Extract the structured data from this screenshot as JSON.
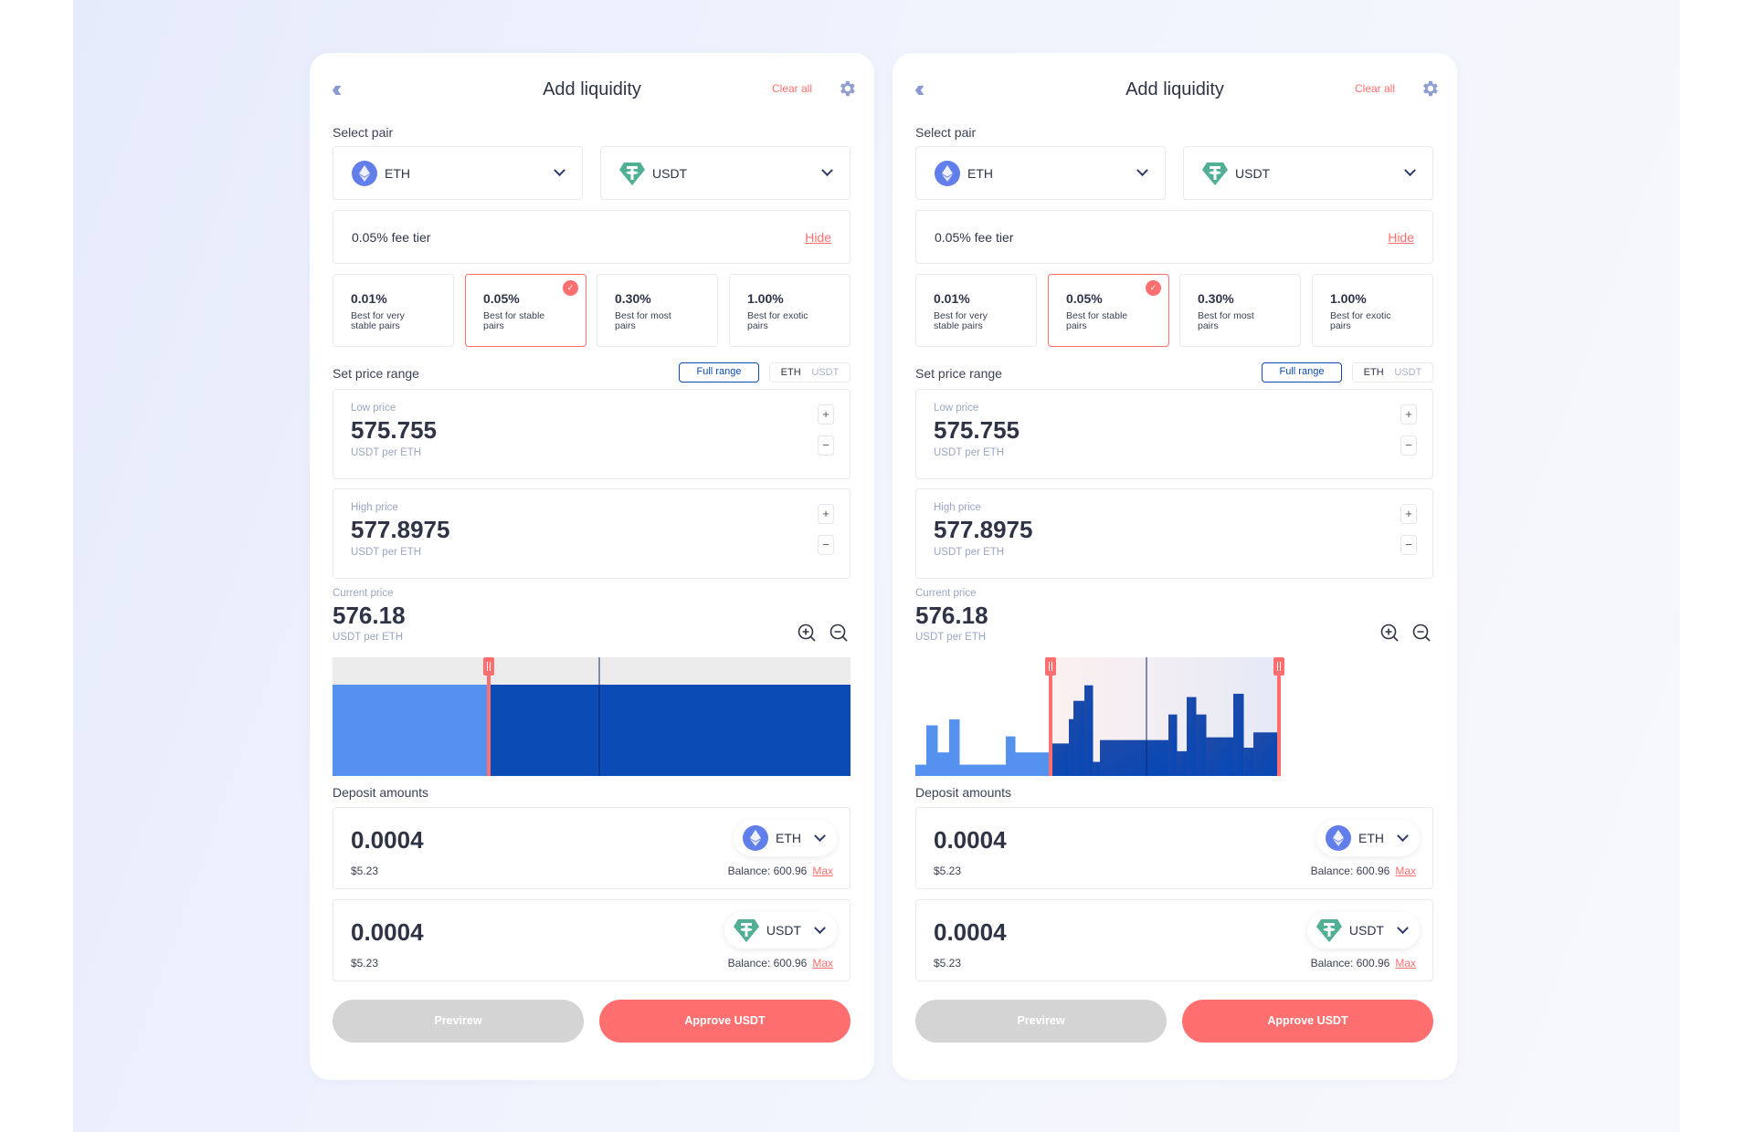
{
  "colors": {
    "accent": "#ff6f6f",
    "primary_blue": "#0a4bb5",
    "light_blue": "#5592ef",
    "eth": "#627eea",
    "usdt": "#50af95"
  },
  "panels": [
    {
      "header": {
        "title": "Add liquidity",
        "clear_all": "Clear all",
        "back_icon": "double-chevron-left-icon",
        "settings_icon": "gear-icon"
      },
      "select_pair": {
        "label": "Select pair",
        "token_a": "ETH",
        "token_b": "USDT"
      },
      "fee": {
        "current": "0.05% fee tier",
        "hide": "Hide",
        "selected_index": 1,
        "options": [
          {
            "pct": "0.01%",
            "desc": "Best for very stable pairs"
          },
          {
            "pct": "0.05%",
            "desc": "Best for stable pairs"
          },
          {
            "pct": "0.30%",
            "desc": "Best for most pairs"
          },
          {
            "pct": "1.00%",
            "desc": "Best for exotic pairs"
          }
        ]
      },
      "range": {
        "label": "Set price range",
        "full_range": "Full range",
        "toggle_a": "ETH",
        "toggle_b": "USDT",
        "full_range_active": true
      },
      "low": {
        "label": "Low price",
        "value": "575.755",
        "unit": "USDT per ETH"
      },
      "high": {
        "label": "High price",
        "value": "577.8975",
        "unit": "USDT per ETH"
      },
      "current": {
        "label": "Current price",
        "value": "576.18",
        "unit": "USDT per ETH"
      },
      "liquidity_chart": {
        "mode": "full-range"
      },
      "deposit": {
        "label": "Deposit amounts",
        "items": [
          {
            "amount": "0.0004",
            "usd": "$5.23",
            "token": "ETH",
            "balance": "Balance: 600.96",
            "max": "Max"
          },
          {
            "amount": "0.0004",
            "usd": "$5.23",
            "token": "USDT",
            "balance": "Balance: 600.96",
            "max": "Max"
          }
        ]
      },
      "buttons": {
        "preview": "Previrew",
        "approve": "Approve USDT"
      }
    },
    {
      "header": {
        "title": "Add liquidity",
        "clear_all": "Clear all",
        "back_icon": "double-chevron-left-icon",
        "settings_icon": "gear-icon"
      },
      "select_pair": {
        "label": "Select pair",
        "token_a": "ETH",
        "token_b": "USDT"
      },
      "fee": {
        "current": "0.05% fee tier",
        "hide": "Hide",
        "selected_index": 1,
        "options": [
          {
            "pct": "0.01%",
            "desc": "Best for very stable pairs"
          },
          {
            "pct": "0.05%",
            "desc": "Best for stable pairs"
          },
          {
            "pct": "0.30%",
            "desc": "Best for most pairs"
          },
          {
            "pct": "1.00%",
            "desc": "Best for exotic pairs"
          }
        ]
      },
      "range": {
        "label": "Set price range",
        "full_range": "Full range",
        "toggle_a": "ETH",
        "toggle_b": "USDT",
        "full_range_active": true
      },
      "low": {
        "label": "Low price",
        "value": "575.755",
        "unit": "USDT per ETH"
      },
      "high": {
        "label": "High price",
        "value": "577.8975",
        "unit": "USDT per ETH"
      },
      "current": {
        "label": "Current price",
        "value": "576.18",
        "unit": "USDT per ETH"
      },
      "liquidity_chart": {
        "mode": "histogram",
        "outside_liquidity_pct": [
          9.6,
          43,
          20,
          48,
          9.6,
          33.6,
          20
        ],
        "inside_liquidity_pct": [
          27.6,
          48.3,
          63.8,
          77,
          12,
          30.5,
          52.2,
          21,
          67,
          52.2,
          32.8,
          69.8,
          24,
          37
        ]
      },
      "deposit": {
        "label": "Deposit amounts",
        "items": [
          {
            "amount": "0.0004",
            "usd": "$5.23",
            "token": "ETH",
            "balance": "Balance: 600.96",
            "max": "Max"
          },
          {
            "amount": "0.0004",
            "usd": "$5.23",
            "token": "USDT",
            "balance": "Balance: 600.96",
            "max": "Max"
          }
        ]
      },
      "buttons": {
        "preview": "Previrew",
        "approve": "Approve USDT"
      }
    }
  ]
}
